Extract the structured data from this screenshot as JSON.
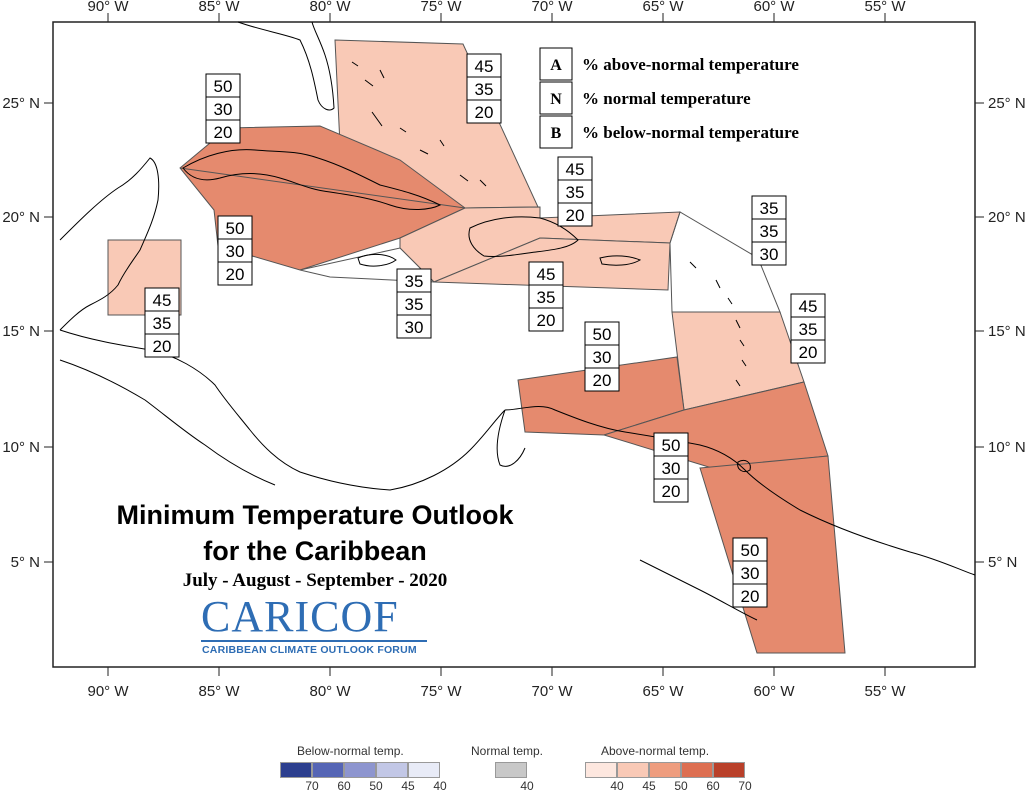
{
  "title_line1": "Minimum Temperature Outlook",
  "title_line2": "for the Caribbean",
  "subtitle": "July - August - September - 2020",
  "logo": {
    "name": "CariCOF",
    "name_display": "CARICOF",
    "tagline": "CARIBBEAN CLIMATE OUTLOOK FORUM"
  },
  "longitude_labels": [
    "90° W",
    "85° W",
    "80° W",
    "75° W",
    "70° W",
    "65° W",
    "60° W",
    "55° W"
  ],
  "latitude_labels": [
    "25° N",
    "20° N",
    "15° N",
    "10° N",
    "5° N"
  ],
  "legend": {
    "entries": [
      {
        "letter": "A",
        "text": "% above-normal temperature"
      },
      {
        "letter": "N",
        "text": "% normal temperature"
      },
      {
        "letter": "B",
        "text": "% below-normal temperature"
      }
    ]
  },
  "regions": [
    {
      "id": "bahamas",
      "above": 45,
      "normal": 35,
      "below": 20,
      "color": "#f9c9b6"
    },
    {
      "id": "cuba",
      "above": 50,
      "normal": 30,
      "below": 20,
      "color": "#e58a6e"
    },
    {
      "id": "hispaniola",
      "above": 45,
      "normal": 35,
      "below": 20,
      "color": "#f9c9b6"
    },
    {
      "id": "puerto-rico",
      "above": 45,
      "normal": 35,
      "below": 20,
      "color": "#f9c9b6"
    },
    {
      "id": "jamaica",
      "above": 35,
      "normal": 35,
      "below": 30,
      "color": "#ffffff"
    },
    {
      "id": "belize",
      "above": 45,
      "normal": 35,
      "below": 20,
      "color": "#f9c9b6"
    },
    {
      "id": "northern-leeward",
      "above": 35,
      "normal": 35,
      "below": 30,
      "color": "#ffffff"
    },
    {
      "id": "windward",
      "above": 45,
      "normal": 35,
      "below": 20,
      "color": "#f9c9b6"
    },
    {
      "id": "abc-islands",
      "above": 50,
      "normal": 30,
      "below": 20,
      "color": "#e58a6e"
    },
    {
      "id": "trinidad",
      "above": 50,
      "normal": 30,
      "below": 20,
      "color": "#e58a6e"
    },
    {
      "id": "guianas",
      "above": 50,
      "normal": 30,
      "below": 20,
      "color": "#e58a6e"
    }
  ],
  "colorbar": {
    "below": {
      "title": "Below-normal temp.",
      "ticks": [
        "70",
        "60",
        "50",
        "45",
        "40"
      ],
      "colors": [
        "#2c3f8f",
        "#5565b5",
        "#8d95cf",
        "#c2c7e6",
        "#e8ebf7"
      ]
    },
    "normal": {
      "title": "Normal temp.",
      "ticks": [
        "40"
      ],
      "colors": [
        "#c8c8c8"
      ]
    },
    "above": {
      "title": "Above-normal temp.",
      "ticks": [
        "40",
        "45",
        "50",
        "60",
        "70"
      ],
      "colors": [
        "#fde7df",
        "#f9c9b6",
        "#ee9d7f",
        "#dd6f52",
        "#b9402a"
      ]
    }
  }
}
